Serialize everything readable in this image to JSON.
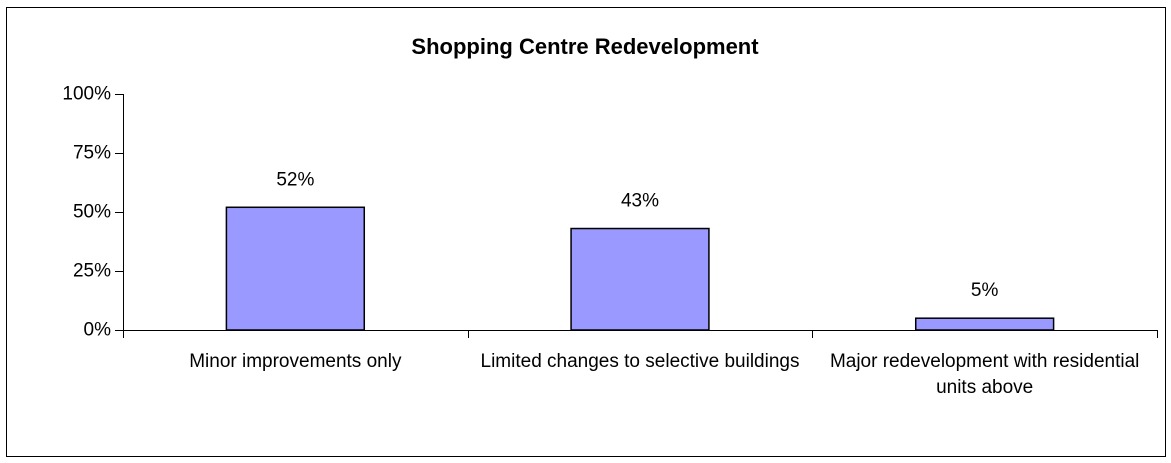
{
  "chart_data": {
    "type": "bar",
    "title": "Shopping Centre Redevelopment",
    "categories": [
      "Minor improvements only",
      "Limited changes to selective buildings",
      "Major redevelopment with residential units above"
    ],
    "values": [
      52,
      43,
      5
    ],
    "value_labels": [
      "52%",
      "43%",
      "5%"
    ],
    "color": "#9999ff",
    "ylim": [
      0,
      100
    ],
    "yticks": [
      {
        "value": 0,
        "label": "0%"
      },
      {
        "value": 25,
        "label": "25%"
      },
      {
        "value": 50,
        "label": "50%"
      },
      {
        "value": 75,
        "label": "75%"
      },
      {
        "value": 100,
        "label": "100%"
      }
    ],
    "grid": false
  }
}
